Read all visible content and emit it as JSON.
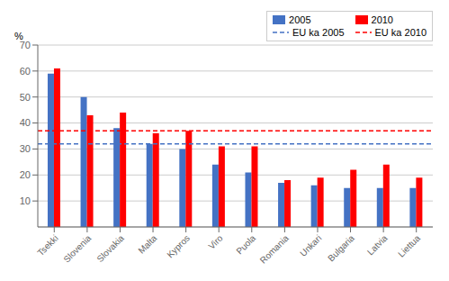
{
  "chart_data": {
    "type": "bar",
    "categories": [
      "Tsekki",
      "Slovenia",
      "Slovakia",
      "Malta",
      "Kypros",
      "Viro",
      "Puola",
      "Romania",
      "Unkari",
      "Bulgaria",
      "Latvia",
      "Liettua"
    ],
    "series": [
      {
        "name": "2005",
        "color": "#4472C4",
        "values": [
          59,
          50,
          38,
          32,
          30,
          24,
          21,
          17,
          16,
          15,
          15,
          15
        ]
      },
      {
        "name": "2010",
        "color": "#FF0000",
        "values": [
          61,
          43,
          44,
          36,
          37,
          31,
          31,
          18,
          19,
          22,
          24,
          19
        ]
      }
    ],
    "reference_lines": [
      {
        "name": "EU ka 2005",
        "value": 32,
        "color": "#4472C4",
        "line_style": "dashed"
      },
      {
        "name": "EU ka 2010",
        "value": 37,
        "color": "#FF0000",
        "line_style": "dashed"
      }
    ],
    "annotations": [
      "%"
    ],
    "ylim": [
      0,
      70
    ],
    "yticks": [
      10,
      20,
      30,
      40,
      50,
      60,
      70
    ],
    "grid": true,
    "legend": "upper right"
  }
}
